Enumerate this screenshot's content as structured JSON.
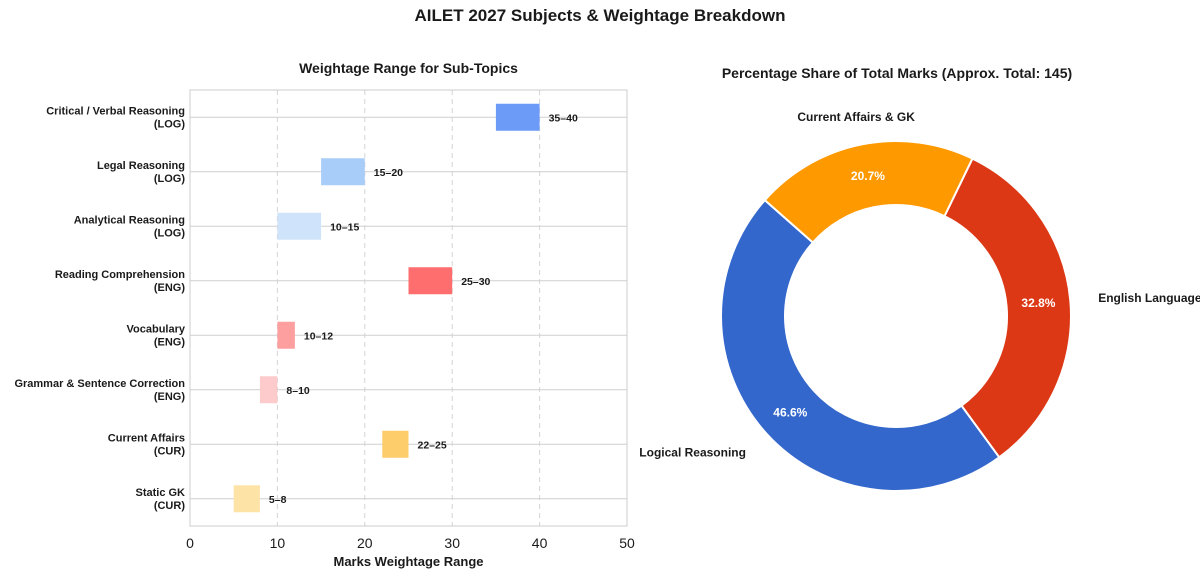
{
  "title": "AILET 2027 Subjects & Weightage Breakdown",
  "chart_data": [
    {
      "type": "bar",
      "subtype": "floating-range-horizontal",
      "title": "Weightage Range for Sub-Topics",
      "xlabel": "Marks Weightage Range",
      "ylabel": "",
      "xlim": [
        0,
        50
      ],
      "xticks": [
        0,
        10,
        20,
        30,
        40,
        50
      ],
      "grid": "x dashed",
      "categories": [
        {
          "line1": "Critical / Verbal Reasoning",
          "line2": "(LOG)",
          "low": 35,
          "high": 40,
          "label": "35–40",
          "color": "#6b9bf7"
        },
        {
          "line1": "Legal Reasoning",
          "line2": "(LOG)",
          "low": 15,
          "high": 20,
          "label": "15–20",
          "color": "#a8cdf9"
        },
        {
          "line1": "Analytical Reasoning",
          "line2": "(LOG)",
          "low": 10,
          "high": 15,
          "label": "10–15",
          "color": "#cfe3fb"
        },
        {
          "line1": "Reading Comprehension",
          "line2": "(ENG)",
          "low": 25,
          "high": 30,
          "label": "25–30",
          "color": "#fe6e6e"
        },
        {
          "line1": "Vocabulary",
          "line2": "(ENG)",
          "low": 10,
          "high": 12,
          "label": "10–12",
          "color": "#fd9f9f"
        },
        {
          "line1": "Grammar & Sentence Correction",
          "line2": "(ENG)",
          "low": 8,
          "high": 10,
          "label": "8–10",
          "color": "#fdcbcb"
        },
        {
          "line1": "Current Affairs",
          "line2": "(CUR)",
          "low": 22,
          "high": 25,
          "label": "22–25",
          "color": "#fdcc6b"
        },
        {
          "line1": "Static GK",
          "line2": "(CUR)",
          "low": 5,
          "high": 8,
          "label": "5–8",
          "color": "#fee3a6"
        }
      ]
    },
    {
      "type": "pie",
      "subtype": "donut",
      "title": "Percentage Share of Total Marks (Approx. Total: 145)",
      "slices": [
        {
          "name": "English Language",
          "value": 32.8,
          "label": "32.8%",
          "color": "#dd3815"
        },
        {
          "name": "Logical Reasoning",
          "value": 46.6,
          "label": "46.6%",
          "color": "#3367cc"
        },
        {
          "name": "Current Affairs & GK",
          "value": 20.7,
          "label": "20.7%",
          "color": "#fe9900"
        }
      ],
      "start": "top, clockwise from English Language"
    }
  ]
}
